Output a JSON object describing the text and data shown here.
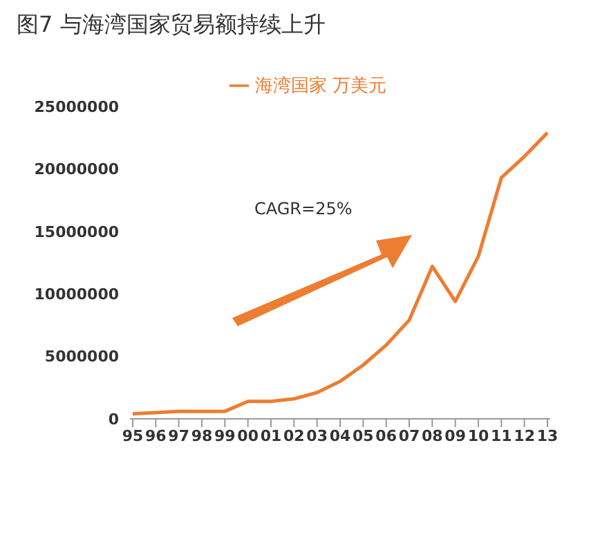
{
  "chart_data": {
    "type": "line",
    "title": "图7 与海湾国家贸易额持续上升",
    "categories": [
      "95",
      "96",
      "97",
      "98",
      "99",
      "00",
      "01",
      "02",
      "03",
      "04",
      "05",
      "06",
      "07",
      "08",
      "09",
      "10",
      "11",
      "12",
      "13"
    ],
    "series": [
      {
        "name": "海湾国家 万美元",
        "color": "#ed7d31",
        "values": [
          400000,
          500000,
          600000,
          600000,
          600000,
          1400000,
          1400000,
          1600000,
          2100000,
          3000000,
          4300000,
          5900000,
          7900000,
          12200000,
          9400000,
          13000000,
          19300000,
          21000000,
          22900000
        ]
      }
    ],
    "ylim": [
      0,
      25000000
    ],
    "yticks": [
      0,
      5000000,
      10000000,
      15000000,
      20000000,
      25000000
    ],
    "legend": "top",
    "marker": "none",
    "line_style": "solid",
    "annotations": [
      "CAGR=25%"
    ]
  }
}
